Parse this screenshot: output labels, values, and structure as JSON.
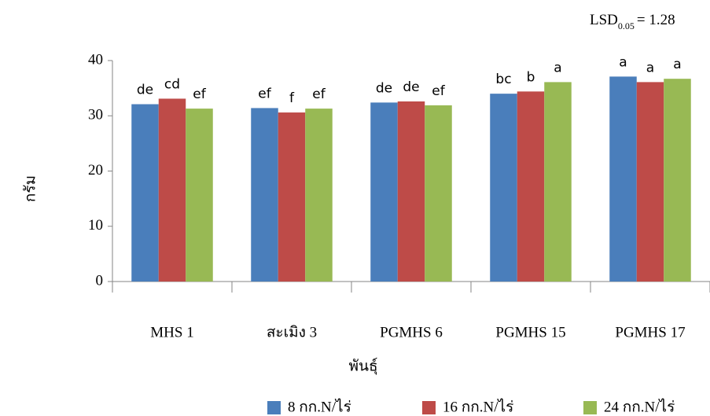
{
  "chart_data": {
    "type": "bar",
    "annotation": {
      "main": "LSD",
      "sub": "0.05",
      "rest": "= 1.28"
    },
    "y_label": "กรัม",
    "x_label": "พันธุ์",
    "categories": [
      "MHS 1",
      "สะเมิง 3",
      "PGMHS 6",
      "PGMHS 15",
      "PGMHS 17"
    ],
    "series": [
      {
        "name": "8 กก.N/ไร่",
        "color": "#4a7ebb",
        "values": [
          32.1,
          31.4,
          32.4,
          34.0,
          37.1
        ],
        "labels": [
          "de",
          "ef",
          "de",
          "bc",
          "a"
        ]
      },
      {
        "name": "16 กก.N/ไร่",
        "color": "#be4b48",
        "values": [
          33.1,
          30.6,
          32.6,
          34.4,
          36.1
        ],
        "labels": [
          "cd",
          "f",
          "de",
          "b",
          "a"
        ]
      },
      {
        "name": "24 กก.N/ไร่",
        "color": "#98b954",
        "values": [
          31.3,
          31.3,
          31.9,
          36.1,
          36.7
        ],
        "labels": [
          "ef",
          "ef",
          "ef",
          "a",
          "a"
        ]
      }
    ],
    "ylim": [
      0,
      40
    ],
    "yticks": [
      0,
      10,
      20,
      30,
      40
    ],
    "grid": false
  }
}
